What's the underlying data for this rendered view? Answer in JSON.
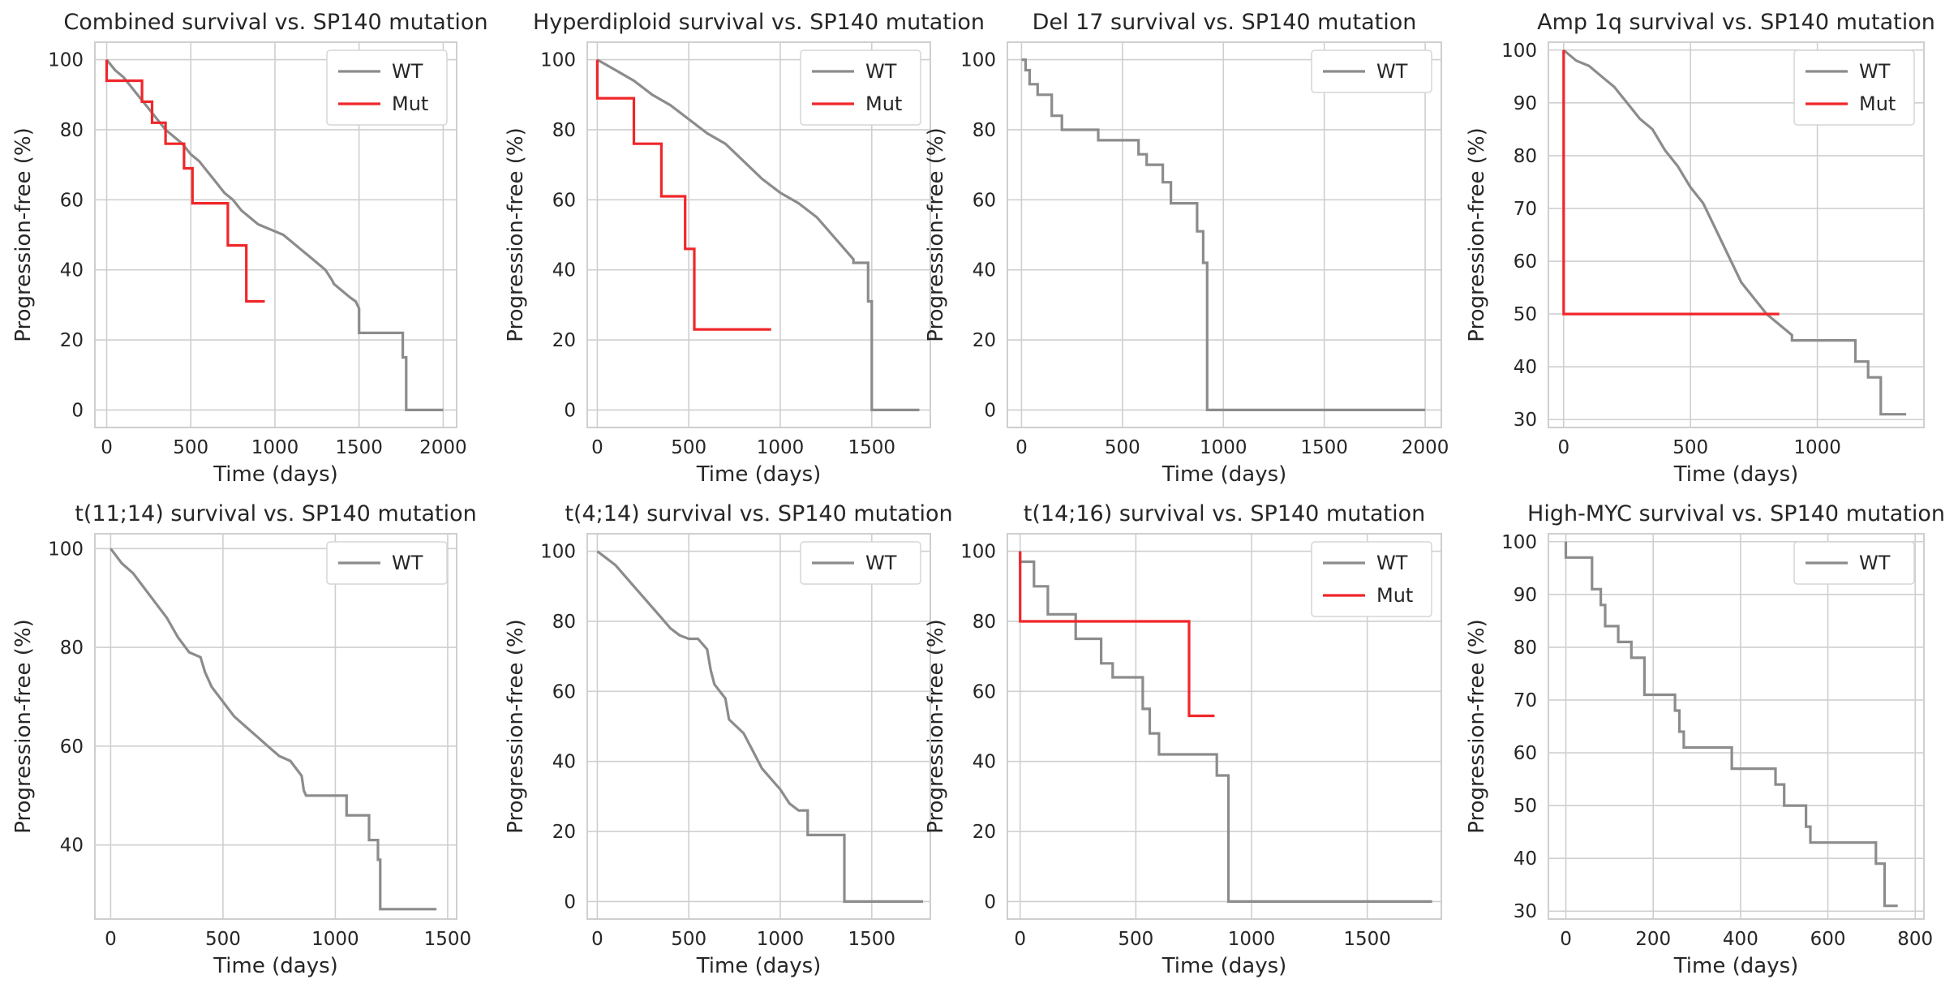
{
  "colors": {
    "wt": "#8c8c8c",
    "mut": "#f0262a",
    "grid": "#cfcfcf",
    "frame": "#cfcfcf",
    "text": "#262626"
  },
  "chart_data": [
    {
      "type": "line",
      "title": "Combined survival vs. SP140 mutation",
      "xlabel": "Time (days)",
      "ylabel": "Progression-free (%)",
      "xlim": [
        -70,
        2080
      ],
      "ylim": [
        -5,
        105
      ],
      "xticks": [
        0,
        500,
        1000,
        1500,
        2000
      ],
      "yticks": [
        0,
        20,
        40,
        60,
        80,
        100
      ],
      "legend": "top-right",
      "grid": true,
      "series": [
        {
          "name": "WT",
          "color": "wt",
          "x": [
            0,
            50,
            100,
            150,
            200,
            250,
            300,
            350,
            400,
            450,
            500,
            550,
            600,
            650,
            700,
            750,
            800,
            850,
            900,
            950,
            1000,
            1050,
            1100,
            1150,
            1200,
            1250,
            1300,
            1340,
            1350,
            1400,
            1450,
            1480,
            1500,
            1500,
            1760,
            1760,
            1780,
            1780,
            2000
          ],
          "y": [
            100,
            97,
            95,
            92,
            89,
            86,
            83,
            80,
            78,
            76,
            73,
            71,
            68,
            65,
            62,
            60,
            57,
            55,
            53,
            52,
            51,
            50,
            48,
            46,
            44,
            42,
            40,
            37,
            36,
            34,
            32,
            31,
            29,
            22,
            22,
            15,
            15,
            0,
            0
          ]
        },
        {
          "name": "Mut",
          "color": "mut",
          "x": [
            0,
            0,
            210,
            210,
            270,
            270,
            350,
            350,
            460,
            460,
            510,
            510,
            720,
            720,
            830,
            830,
            940
          ],
          "y": [
            100,
            94,
            94,
            88,
            88,
            82,
            82,
            76,
            76,
            69,
            69,
            59,
            59,
            47,
            47,
            31,
            31
          ]
        }
      ]
    },
    {
      "type": "line",
      "title": "Hyperdiploid survival vs. SP140 mutation",
      "xlabel": "Time (days)",
      "ylabel": "Progression-free (%)",
      "xlim": [
        -55,
        1820
      ],
      "ylim": [
        -5,
        105
      ],
      "xticks": [
        0,
        500,
        1000,
        1500
      ],
      "yticks": [
        0,
        20,
        40,
        60,
        80,
        100
      ],
      "legend": "top-right",
      "grid": true,
      "series": [
        {
          "name": "WT",
          "color": "wt",
          "x": [
            0,
            100,
            200,
            300,
            400,
            500,
            600,
            700,
            800,
            900,
            1000,
            1100,
            1200,
            1300,
            1350,
            1400,
            1400,
            1480,
            1480,
            1500,
            1500,
            1760
          ],
          "y": [
            100,
            97,
            94,
            90,
            87,
            83,
            79,
            76,
            71,
            66,
            62,
            59,
            55,
            49,
            46,
            43,
            42,
            42,
            31,
            31,
            0,
            0
          ]
        },
        {
          "name": "Mut",
          "color": "mut",
          "x": [
            0,
            0,
            200,
            200,
            350,
            350,
            480,
            480,
            530,
            530,
            950
          ],
          "y": [
            100,
            89,
            89,
            76,
            76,
            61,
            61,
            46,
            46,
            23,
            23
          ]
        }
      ]
    },
    {
      "type": "line",
      "title": "Del 17 survival vs. SP140 mutation",
      "xlabel": "Time (days)",
      "ylabel": "Progression-free (%)",
      "xlim": [
        -70,
        2080
      ],
      "ylim": [
        -5,
        105
      ],
      "xticks": [
        0,
        500,
        1000,
        1500,
        2000
      ],
      "yticks": [
        0,
        20,
        40,
        60,
        80,
        100
      ],
      "legend": "top-right",
      "grid": true,
      "series": [
        {
          "name": "WT",
          "color": "wt",
          "x": [
            0,
            20,
            20,
            40,
            40,
            80,
            80,
            150,
            150,
            200,
            200,
            380,
            380,
            580,
            580,
            620,
            620,
            700,
            700,
            740,
            740,
            870,
            870,
            900,
            900,
            920,
            920,
            2000
          ],
          "y": [
            100,
            100,
            97,
            97,
            93,
            93,
            90,
            90,
            84,
            84,
            80,
            80,
            77,
            77,
            73,
            73,
            70,
            70,
            65,
            65,
            59,
            59,
            51,
            51,
            42,
            42,
            0,
            0
          ]
        }
      ]
    },
    {
      "type": "line",
      "title": "Amp 1q survival vs. SP140 mutation",
      "xlabel": "Time (days)",
      "ylabel": "Progression-free (%)",
      "xlim": [
        -60,
        1420
      ],
      "ylim": [
        28.5,
        101.5
      ],
      "xticks": [
        0,
        500,
        1000
      ],
      "yticks": [
        30,
        40,
        50,
        60,
        70,
        80,
        90,
        100
      ],
      "legend": "top-right",
      "grid": true,
      "series": [
        {
          "name": "WT",
          "color": "wt",
          "x": [
            0,
            50,
            100,
            150,
            200,
            250,
            300,
            350,
            400,
            450,
            500,
            550,
            600,
            650,
            700,
            750,
            800,
            850,
            900,
            900,
            1150,
            1150,
            1200,
            1200,
            1250,
            1250,
            1350
          ],
          "y": [
            100,
            98,
            97,
            95,
            93,
            90,
            87,
            85,
            81,
            78,
            74,
            71,
            66,
            61,
            56,
            53,
            50,
            48,
            46,
            45,
            45,
            41,
            41,
            38,
            38,
            31,
            31
          ]
        },
        {
          "name": "Mut",
          "color": "mut",
          "x": [
            0,
            0,
            850
          ],
          "y": [
            100,
            50,
            50
          ]
        }
      ]
    },
    {
      "type": "line",
      "title": "t(11;14) survival vs. SP140 mutation",
      "xlabel": "Time (days)",
      "ylabel": "Progression-free (%)",
      "xlim": [
        -70,
        1540
      ],
      "ylim": [
        25,
        103
      ],
      "xticks": [
        0,
        500,
        1000,
        1500
      ],
      "yticks": [
        40,
        60,
        80,
        100
      ],
      "legend": "top-right",
      "grid": true,
      "series": [
        {
          "name": "WT",
          "color": "wt",
          "x": [
            0,
            50,
            100,
            150,
            200,
            250,
            300,
            350,
            400,
            420,
            450,
            500,
            550,
            600,
            650,
            700,
            750,
            800,
            850,
            860,
            870,
            1000,
            1050,
            1050,
            1100,
            1150,
            1150,
            1190,
            1190,
            1200,
            1200,
            1450
          ],
          "y": [
            100,
            97,
            95,
            92,
            89,
            86,
            82,
            79,
            78,
            75,
            72,
            69,
            66,
            64,
            62,
            60,
            58,
            57,
            54,
            51,
            50,
            50,
            50,
            46,
            46,
            46,
            41,
            41,
            37,
            37,
            27,
            27
          ]
        }
      ]
    },
    {
      "type": "line",
      "title": "t(4;14) survival vs. SP140 mutation",
      "xlabel": "Time (days)",
      "ylabel": "Progression-free (%)",
      "xlim": [
        -55,
        1820
      ],
      "ylim": [
        -5,
        105
      ],
      "xticks": [
        0,
        500,
        1000,
        1500
      ],
      "yticks": [
        0,
        20,
        40,
        60,
        80,
        100
      ],
      "legend": "top-right",
      "grid": true,
      "series": [
        {
          "name": "WT",
          "color": "wt",
          "x": [
            0,
            50,
            100,
            150,
            200,
            250,
            300,
            350,
            400,
            450,
            500,
            550,
            600,
            620,
            640,
            700,
            720,
            800,
            850,
            900,
            950,
            1000,
            1050,
            1100,
            1150,
            1150,
            1350,
            1350,
            1780
          ],
          "y": [
            100,
            98,
            96,
            93,
            90,
            87,
            84,
            81,
            78,
            76,
            75,
            75,
            72,
            66,
            62,
            58,
            52,
            48,
            43,
            38,
            35,
            32,
            28,
            26,
            26,
            19,
            19,
            0,
            0
          ]
        }
      ]
    },
    {
      "type": "line",
      "title": "t(14;16) survival vs. SP140 mutation",
      "xlabel": "Time (days)",
      "ylabel": "Progression-free (%)",
      "xlim": [
        -55,
        1820
      ],
      "ylim": [
        -5,
        105
      ],
      "xticks": [
        0,
        500,
        1000,
        1500
      ],
      "yticks": [
        0,
        20,
        40,
        60,
        80,
        100
      ],
      "legend": "top-right",
      "grid": true,
      "series": [
        {
          "name": "WT",
          "color": "wt",
          "x": [
            0,
            0,
            60,
            60,
            120,
            120,
            240,
            240,
            350,
            350,
            400,
            400,
            530,
            530,
            560,
            560,
            600,
            600,
            850,
            850,
            900,
            900,
            1780
          ],
          "y": [
            100,
            97,
            97,
            90,
            90,
            82,
            82,
            75,
            75,
            68,
            68,
            64,
            64,
            55,
            55,
            48,
            48,
            42,
            42,
            36,
            36,
            0,
            0
          ]
        },
        {
          "name": "Mut",
          "color": "mut",
          "x": [
            0,
            0,
            730,
            730,
            840
          ],
          "y": [
            100,
            80,
            80,
            53,
            53
          ]
        }
      ]
    },
    {
      "type": "line",
      "title": "High-MYC survival vs. SP140 mutation",
      "xlabel": "Time (days)",
      "ylabel": "Progression-free (%)",
      "xlim": [
        -40,
        820
      ],
      "ylim": [
        28.5,
        101.5
      ],
      "xticks": [
        0,
        200,
        400,
        600,
        800
      ],
      "yticks": [
        30,
        40,
        50,
        60,
        70,
        80,
        90,
        100
      ],
      "legend": "top-right",
      "grid": true,
      "series": [
        {
          "name": "WT",
          "color": "wt",
          "x": [
            0,
            0,
            60,
            60,
            80,
            80,
            90,
            90,
            120,
            120,
            150,
            150,
            180,
            180,
            250,
            250,
            260,
            260,
            270,
            270,
            380,
            380,
            480,
            480,
            500,
            500,
            550,
            550,
            560,
            560,
            710,
            710,
            730,
            730,
            760
          ],
          "y": [
            100,
            97,
            97,
            91,
            91,
            88,
            88,
            84,
            84,
            81,
            81,
            78,
            78,
            71,
            71,
            68,
            68,
            64,
            64,
            61,
            61,
            57,
            57,
            54,
            54,
            50,
            50,
            46,
            46,
            43,
            43,
            39,
            39,
            31,
            31
          ]
        }
      ]
    }
  ]
}
